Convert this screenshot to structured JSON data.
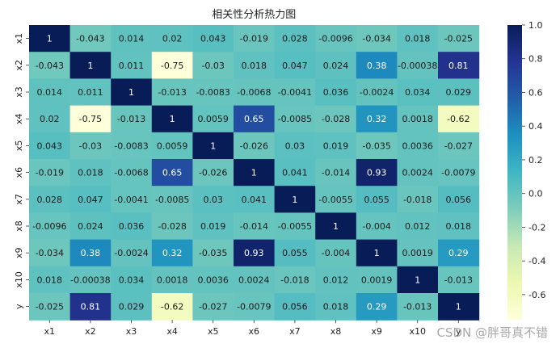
{
  "watermark": "CSDN @胖哥真不错",
  "chart_data": {
    "type": "heatmap",
    "title": "相关性分析热力图",
    "x_labels": [
      "x1",
      "x2",
      "x3",
      "x4",
      "x5",
      "x6",
      "x7",
      "x8",
      "x9",
      "x10",
      "y"
    ],
    "y_labels": [
      "x1",
      "x2",
      "x3",
      "x4",
      "x5",
      "x6",
      "x7",
      "x8",
      "x9",
      "x10",
      "y"
    ],
    "matrix": [
      [
        1,
        -0.043,
        0.014,
        0.02,
        0.043,
        -0.019,
        0.028,
        -0.0096,
        -0.034,
        0.018,
        -0.025
      ],
      [
        -0.043,
        1,
        0.011,
        -0.75,
        -0.03,
        0.018,
        0.047,
        0.024,
        0.38,
        -0.00038,
        0.81
      ],
      [
        0.014,
        0.011,
        1,
        -0.013,
        -0.0083,
        -0.0068,
        -0.0041,
        0.036,
        -0.0024,
        0.034,
        0.029
      ],
      [
        0.02,
        -0.75,
        -0.013,
        1,
        0.0059,
        0.65,
        -0.0085,
        -0.028,
        0.32,
        0.0018,
        -0.62
      ],
      [
        0.043,
        -0.03,
        -0.0083,
        0.0059,
        1,
        -0.026,
        0.03,
        0.019,
        -0.035,
        0.0036,
        -0.027
      ],
      [
        -0.019,
        0.018,
        -0.0068,
        0.65,
        -0.026,
        1,
        0.041,
        -0.014,
        0.93,
        0.0024,
        -0.0079
      ],
      [
        0.028,
        0.047,
        -0.0041,
        -0.0085,
        0.03,
        0.041,
        1,
        -0.0055,
        0.055,
        -0.018,
        0.056
      ],
      [
        -0.0096,
        0.024,
        0.036,
        -0.028,
        0.019,
        -0.014,
        -0.0055,
        1,
        -0.004,
        0.012,
        0.018
      ],
      [
        -0.034,
        0.38,
        -0.0024,
        0.32,
        -0.035,
        0.93,
        0.055,
        -0.004,
        1,
        0.0019,
        0.29
      ],
      [
        0.018,
        -0.00038,
        0.034,
        0.0018,
        0.0036,
        0.0024,
        -0.018,
        0.012,
        0.0019,
        1,
        -0.013
      ],
      [
        -0.025,
        0.81,
        0.029,
        -0.62,
        -0.027,
        -0.0079,
        0.056,
        0.018,
        0.29,
        -0.013,
        1
      ]
    ],
    "colorbar": {
      "ticks": [
        "1.0",
        "0.8",
        "0.6",
        "0.4",
        "0.2",
        "0.0",
        "-0.2",
        "-0.4",
        "-0.6"
      ],
      "tick_values": [
        1.0,
        0.8,
        0.6,
        0.4,
        0.2,
        0.0,
        -0.2,
        -0.4,
        -0.6
      ],
      "vmin": -0.75,
      "vmax": 1.0,
      "colormap": "YlGnBu"
    }
  }
}
